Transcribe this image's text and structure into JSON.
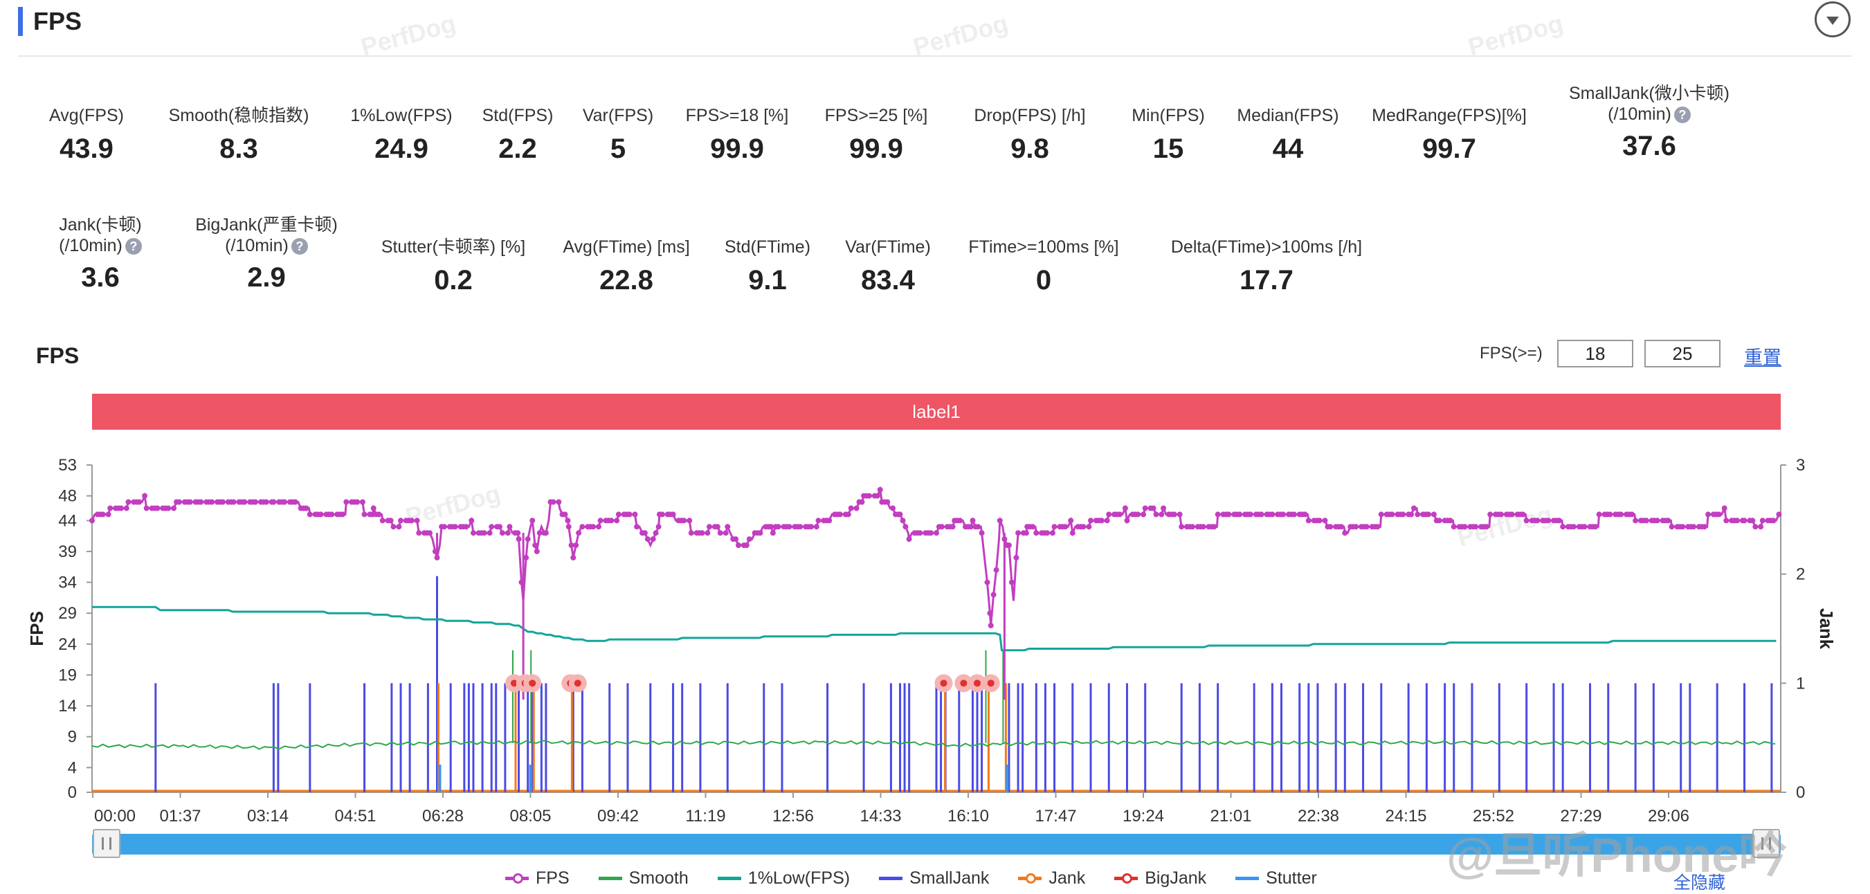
{
  "header": {
    "title": "FPS",
    "watermark": "PerfDog"
  },
  "metrics_row1": [
    {
      "label": "Avg(FPS)",
      "value": "43.9",
      "help": false,
      "cx": 125
    },
    {
      "label": "Smooth(稳帧指数)",
      "value": "8.3",
      "help": true,
      "cx": 345
    },
    {
      "label": "1%Low(FPS)",
      "value": "24.9",
      "help": false,
      "cx": 580
    },
    {
      "label": "Std(FPS)",
      "value": "2.2",
      "help": false,
      "cx": 748
    },
    {
      "label": "Var(FPS)",
      "value": "5",
      "help": false,
      "cx": 893
    },
    {
      "label": "FPS>=18 [%]",
      "value": "99.9",
      "help": false,
      "cx": 1065
    },
    {
      "label": "FPS>=25 [%]",
      "value": "99.9",
      "help": false,
      "cx": 1266
    },
    {
      "label": "Drop(FPS) [/h]",
      "value": "9.8",
      "help": true,
      "cx": 1488
    },
    {
      "label": "Min(FPS)",
      "value": "15",
      "help": false,
      "cx": 1688
    },
    {
      "label": "Median(FPS)",
      "value": "44",
      "help": false,
      "cx": 1861
    },
    {
      "label": "MedRange(FPS)[%]",
      "value": "99.7",
      "help": false,
      "cx": 2094
    },
    {
      "label": "SmallJank(微小卡顿)",
      "label2": "(/10min)",
      "value": "37.6",
      "help": true,
      "cx": 2383
    }
  ],
  "metrics_row2": [
    {
      "label": "Jank(卡顿)",
      "label2": "(/10min)",
      "value": "3.6",
      "help": true,
      "cx": 145
    },
    {
      "label": "BigJank(严重卡顿)",
      "label2": "(/10min)",
      "value": "2.9",
      "help": true,
      "cx": 385
    },
    {
      "label": "Stutter(卡顿率) [%]",
      "value": "0.2",
      "help": false,
      "cx": 655
    },
    {
      "label": "Avg(FTime) [ms]",
      "value": "22.8",
      "help": false,
      "cx": 905
    },
    {
      "label": "Std(FTime)",
      "value": "9.1",
      "help": false,
      "cx": 1109
    },
    {
      "label": "Var(FTime)",
      "value": "83.4",
      "help": false,
      "cx": 1283
    },
    {
      "label": "FTime>=100ms [%]",
      "value": "0",
      "help": false,
      "cx": 1508
    },
    {
      "label": "Delta(FTime)>100ms [/h]",
      "value": "17.7",
      "help": true,
      "cx": 1830
    }
  ],
  "fps_section": {
    "title": "FPS",
    "threshold_label": "FPS(>=)",
    "threshold_1": "18",
    "threshold_2": "25",
    "reset_label": "重置",
    "label_band": "label1"
  },
  "legend": [
    {
      "name": "FPS",
      "color": "#c23ec0",
      "dot": true
    },
    {
      "name": "Smooth",
      "color": "#2ea84a",
      "dot": false
    },
    {
      "name": "1%Low(FPS)",
      "color": "#12a59a",
      "dot": false
    },
    {
      "name": "SmallJank",
      "color": "#4a4ae6",
      "dot": false
    },
    {
      "name": "Jank",
      "color": "#f27a1a",
      "dot": true
    },
    {
      "name": "BigJank",
      "color": "#e03030",
      "dot": true
    },
    {
      "name": "Stutter",
      "color": "#3d94f0",
      "dot": false
    }
  ],
  "hide_all_label": "全隐藏",
  "corner_watermark": "@旦听Phone吟",
  "chart_data": {
    "type": "line",
    "ylabel": "FPS",
    "y2label": "Jank",
    "ylim": [
      0,
      53
    ],
    "yticks": [
      0,
      4,
      9,
      14,
      19,
      24,
      29,
      34,
      39,
      44,
      48,
      53
    ],
    "y2lim": [
      0,
      3
    ],
    "y2ticks": [
      0,
      1,
      2,
      3
    ],
    "x_range_seconds": [
      0,
      1860
    ],
    "xticks": [
      "00:00",
      "01:37",
      "03:14",
      "04:51",
      "06:28",
      "08:05",
      "09:42",
      "11:19",
      "12:56",
      "14:33",
      "16:10",
      "17:47",
      "19:24",
      "21:01",
      "22:38",
      "24:15",
      "25:52",
      "27:29",
      "29:06"
    ],
    "colors": {
      "fps": "#c23ec0",
      "smooth": "#2ea84a",
      "low1": "#12a59a",
      "smalljank": "#4a4ae6",
      "jank": "#f27a1a",
      "bigjank": "#e03030",
      "stutter": "#3d94f0"
    },
    "fps_series": [
      [
        0,
        45
      ],
      [
        20,
        46
      ],
      [
        40,
        46
      ],
      [
        60,
        47
      ],
      [
        90,
        47
      ],
      [
        120,
        48
      ],
      [
        150,
        48
      ],
      [
        180,
        48
      ],
      [
        200,
        47
      ],
      [
        215,
        47
      ],
      [
        240,
        46
      ],
      [
        280,
        46
      ],
      [
        300,
        46
      ],
      [
        310,
        45
      ],
      [
        320,
        44
      ],
      [
        340,
        43
      ],
      [
        360,
        43
      ],
      [
        375,
        42
      ],
      [
        380,
        38
      ],
      [
        385,
        42
      ],
      [
        400,
        42
      ],
      [
        420,
        43
      ],
      [
        440,
        43
      ],
      [
        460,
        42
      ],
      [
        470,
        41
      ],
      [
        475,
        30
      ],
      [
        480,
        42
      ],
      [
        485,
        44
      ],
      [
        490,
        38
      ],
      [
        495,
        44
      ],
      [
        500,
        42
      ],
      [
        505,
        46
      ],
      [
        515,
        46
      ],
      [
        525,
        44
      ],
      [
        530,
        38
      ],
      [
        540,
        44
      ],
      [
        560,
        44
      ],
      [
        580,
        44
      ],
      [
        600,
        44
      ],
      [
        615,
        41
      ],
      [
        625,
        44
      ],
      [
        640,
        44
      ],
      [
        660,
        43
      ],
      [
        680,
        43
      ],
      [
        700,
        42
      ],
      [
        715,
        39
      ],
      [
        730,
        41
      ],
      [
        750,
        43
      ],
      [
        780,
        44
      ],
      [
        800,
        44
      ],
      [
        830,
        45
      ],
      [
        850,
        47
      ],
      [
        870,
        48
      ],
      [
        885,
        46
      ],
      [
        890,
        45
      ],
      [
        900,
        42
      ],
      [
        930,
        43
      ],
      [
        950,
        44
      ],
      [
        970,
        43
      ],
      [
        980,
        42
      ],
      [
        990,
        28
      ],
      [
        1000,
        43
      ],
      [
        1005,
        42
      ],
      [
        1010,
        40
      ],
      [
        1015,
        30
      ],
      [
        1020,
        43
      ],
      [
        1030,
        42
      ],
      [
        1040,
        42
      ],
      [
        1060,
        42
      ],
      [
        1080,
        43
      ],
      [
        1100,
        44
      ],
      [
        1120,
        44
      ],
      [
        1140,
        45
      ],
      [
        1160,
        46
      ],
      [
        1180,
        45
      ],
      [
        1200,
        44
      ],
      [
        1240,
        44
      ],
      [
        1300,
        44
      ],
      [
        1340,
        44
      ],
      [
        1380,
        43
      ],
      [
        1420,
        44
      ],
      [
        1460,
        45
      ],
      [
        1500,
        44
      ],
      [
        1540,
        44
      ],
      [
        1580,
        44
      ],
      [
        1620,
        44
      ],
      [
        1660,
        44
      ],
      [
        1700,
        44
      ],
      [
        1740,
        44
      ],
      [
        1780,
        44
      ],
      [
        1800,
        45
      ],
      [
        1820,
        44
      ],
      [
        1840,
        43
      ],
      [
        1860,
        44
      ]
    ],
    "low1_series": [
      [
        0,
        30
      ],
      [
        70,
        30
      ],
      [
        75,
        29.5
      ],
      [
        200,
        29.3
      ],
      [
        300,
        29
      ],
      [
        370,
        28
      ],
      [
        435,
        27.5
      ],
      [
        470,
        27
      ],
      [
        480,
        26
      ],
      [
        490,
        25.8
      ],
      [
        520,
        25
      ],
      [
        550,
        24.5
      ],
      [
        580,
        24.7
      ],
      [
        700,
        25
      ],
      [
        880,
        25.6
      ],
      [
        960,
        25.8
      ],
      [
        1000,
        25.6
      ],
      [
        1002,
        23
      ],
      [
        1050,
        23.2
      ],
      [
        1300,
        23.8
      ],
      [
        1600,
        24.3
      ],
      [
        1800,
        24.5
      ],
      [
        1860,
        24.5
      ]
    ],
    "smooth_series": [
      [
        0,
        7.5
      ],
      [
        100,
        7.5
      ],
      [
        200,
        7.2
      ],
      [
        300,
        7.8
      ],
      [
        400,
        8
      ],
      [
        500,
        8.1
      ],
      [
        600,
        8
      ],
      [
        700,
        8
      ],
      [
        800,
        8.1
      ],
      [
        900,
        8
      ],
      [
        950,
        7.6
      ],
      [
        1000,
        7.8
      ],
      [
        1100,
        8.1
      ],
      [
        1200,
        8
      ],
      [
        1300,
        8
      ],
      [
        1400,
        8
      ],
      [
        1500,
        8.1
      ],
      [
        1600,
        8
      ],
      [
        1700,
        8
      ],
      [
        1800,
        8
      ],
      [
        1860,
        8
      ]
    ],
    "smalljank_x": [
      70,
      200,
      205,
      240,
      300,
      330,
      340,
      350,
      370,
      395,
      410,
      415,
      420,
      430,
      440,
      445,
      455,
      470,
      480,
      485,
      495,
      500,
      530,
      540,
      570,
      590,
      615,
      640,
      650,
      670,
      700,
      740,
      760,
      810,
      850,
      880,
      890,
      895,
      900,
      930,
      935,
      940,
      955,
      970,
      975,
      980,
      1010,
      1020,
      1025,
      1040,
      1050,
      1060,
      1080,
      1100,
      1120,
      1140,
      1160,
      1200,
      1220,
      1240,
      1280,
      1300,
      1310,
      1330,
      1340,
      1350,
      1370,
      1380,
      1400,
      1420,
      1450,
      1470,
      1490,
      1500,
      1520,
      1550,
      1580,
      1610,
      1620,
      1650,
      1670,
      1700,
      1720,
      1750,
      1760,
      1790,
      1820,
      1850
    ],
    "smalljank_tall_x": [
      380
    ],
    "jank_x": [
      380,
      465,
      485,
      527,
      938,
      986,
      1005
    ],
    "bigjank_x": [
      465,
      477,
      485,
      527,
      535,
      938,
      960,
      975,
      990
    ],
    "stutter_x": [
      380,
      480,
      1005
    ]
  }
}
